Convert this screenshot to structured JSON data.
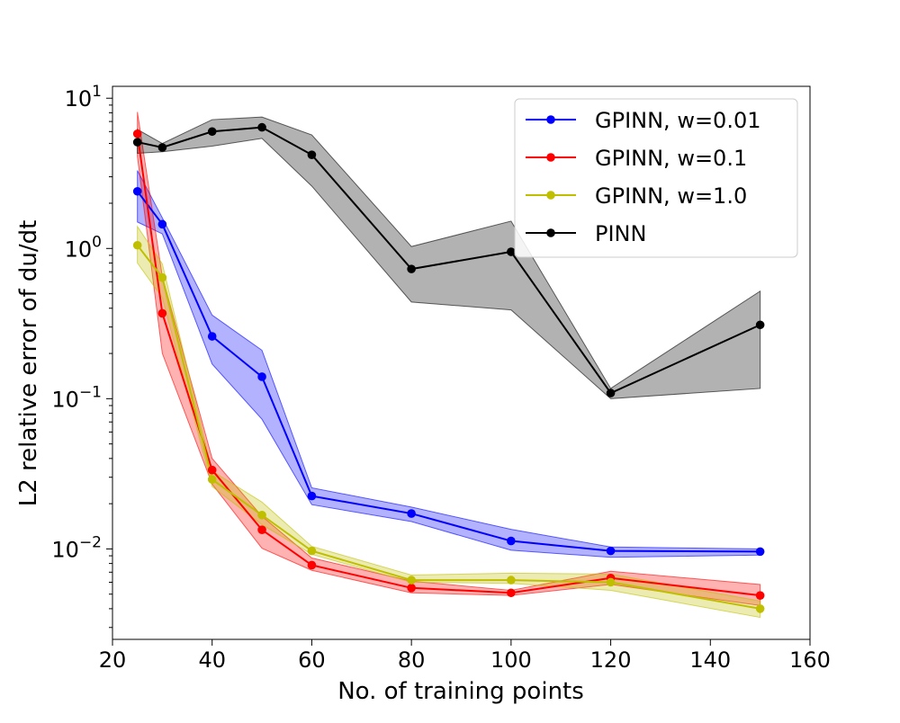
{
  "chart_data": {
    "type": "line",
    "xlabel": "No. of training points",
    "ylabel": "L2 relative error of du/dt",
    "xscale": "linear",
    "yscale": "log",
    "xlim": [
      20,
      160
    ],
    "ylim": [
      0.0025,
      12
    ],
    "grid": false,
    "legend_position": "top-right",
    "x_ticks": [
      {
        "value": 20,
        "label": "20"
      },
      {
        "value": 40,
        "label": "40"
      },
      {
        "value": 60,
        "label": "60"
      },
      {
        "value": 80,
        "label": "80"
      },
      {
        "value": 100,
        "label": "100"
      },
      {
        "value": 120,
        "label": "120"
      },
      {
        "value": 140,
        "label": "140"
      },
      {
        "value": 160,
        "label": "160"
      }
    ],
    "y_ticks": [
      {
        "value": 0.01,
        "base": "10",
        "exp": "−2"
      },
      {
        "value": 0.1,
        "base": "10",
        "exp": "−1"
      },
      {
        "value": 1,
        "base": "10",
        "exp": "0"
      },
      {
        "value": 10,
        "base": "10",
        "exp": "1"
      }
    ],
    "x": [
      25,
      30,
      40,
      50,
      60,
      80,
      100,
      120,
      150
    ],
    "series": [
      {
        "name": "GPINN, w=0.01",
        "color": "#0000ff",
        "values": [
          2.4,
          1.45,
          0.26,
          0.14,
          0.0225,
          0.0172,
          0.0113,
          0.0097,
          0.0096
        ],
        "lower": [
          1.5,
          1.25,
          0.17,
          0.073,
          0.0197,
          0.0152,
          0.0098,
          0.0088,
          0.0091
        ],
        "upper": [
          3.3,
          1.6,
          0.36,
          0.21,
          0.0255,
          0.019,
          0.0135,
          0.0103,
          0.01
        ]
      },
      {
        "name": "GPINN, w=0.1",
        "color": "#ff0000",
        "values": [
          5.8,
          0.37,
          0.0335,
          0.0134,
          0.0078,
          0.0055,
          0.0051,
          0.0064,
          0.0049
        ],
        "lower": [
          4.1,
          0.2,
          0.027,
          0.0101,
          0.0072,
          0.0051,
          0.0049,
          0.0058,
          0.0042
        ],
        "upper": [
          8.1,
          0.65,
          0.04,
          0.0165,
          0.0087,
          0.0061,
          0.0053,
          0.0071,
          0.0058
        ]
      },
      {
        "name": "GPINN, w=1.0",
        "color": "#bfbf00",
        "values": [
          1.05,
          0.64,
          0.029,
          0.0168,
          0.0097,
          0.0062,
          0.0062,
          0.006,
          0.004
        ],
        "lower": [
          0.8,
          0.47,
          0.026,
          0.0145,
          0.0092,
          0.006,
          0.0059,
          0.0053,
          0.0035
        ],
        "upper": [
          1.4,
          0.79,
          0.033,
          0.0205,
          0.0104,
          0.0067,
          0.0069,
          0.0068,
          0.0045
        ]
      },
      {
        "name": "PINN",
        "color": "#000000",
        "values": [
          5.1,
          4.7,
          6.0,
          6.4,
          4.2,
          0.73,
          0.95,
          0.109,
          0.31
        ],
        "lower": [
          4.3,
          4.4,
          4.8,
          5.4,
          2.6,
          0.44,
          0.39,
          0.1,
          0.117
        ],
        "upper": [
          6.2,
          5.0,
          7.2,
          7.5,
          5.7,
          1.03,
          1.52,
          0.117,
          0.52
        ]
      }
    ]
  }
}
